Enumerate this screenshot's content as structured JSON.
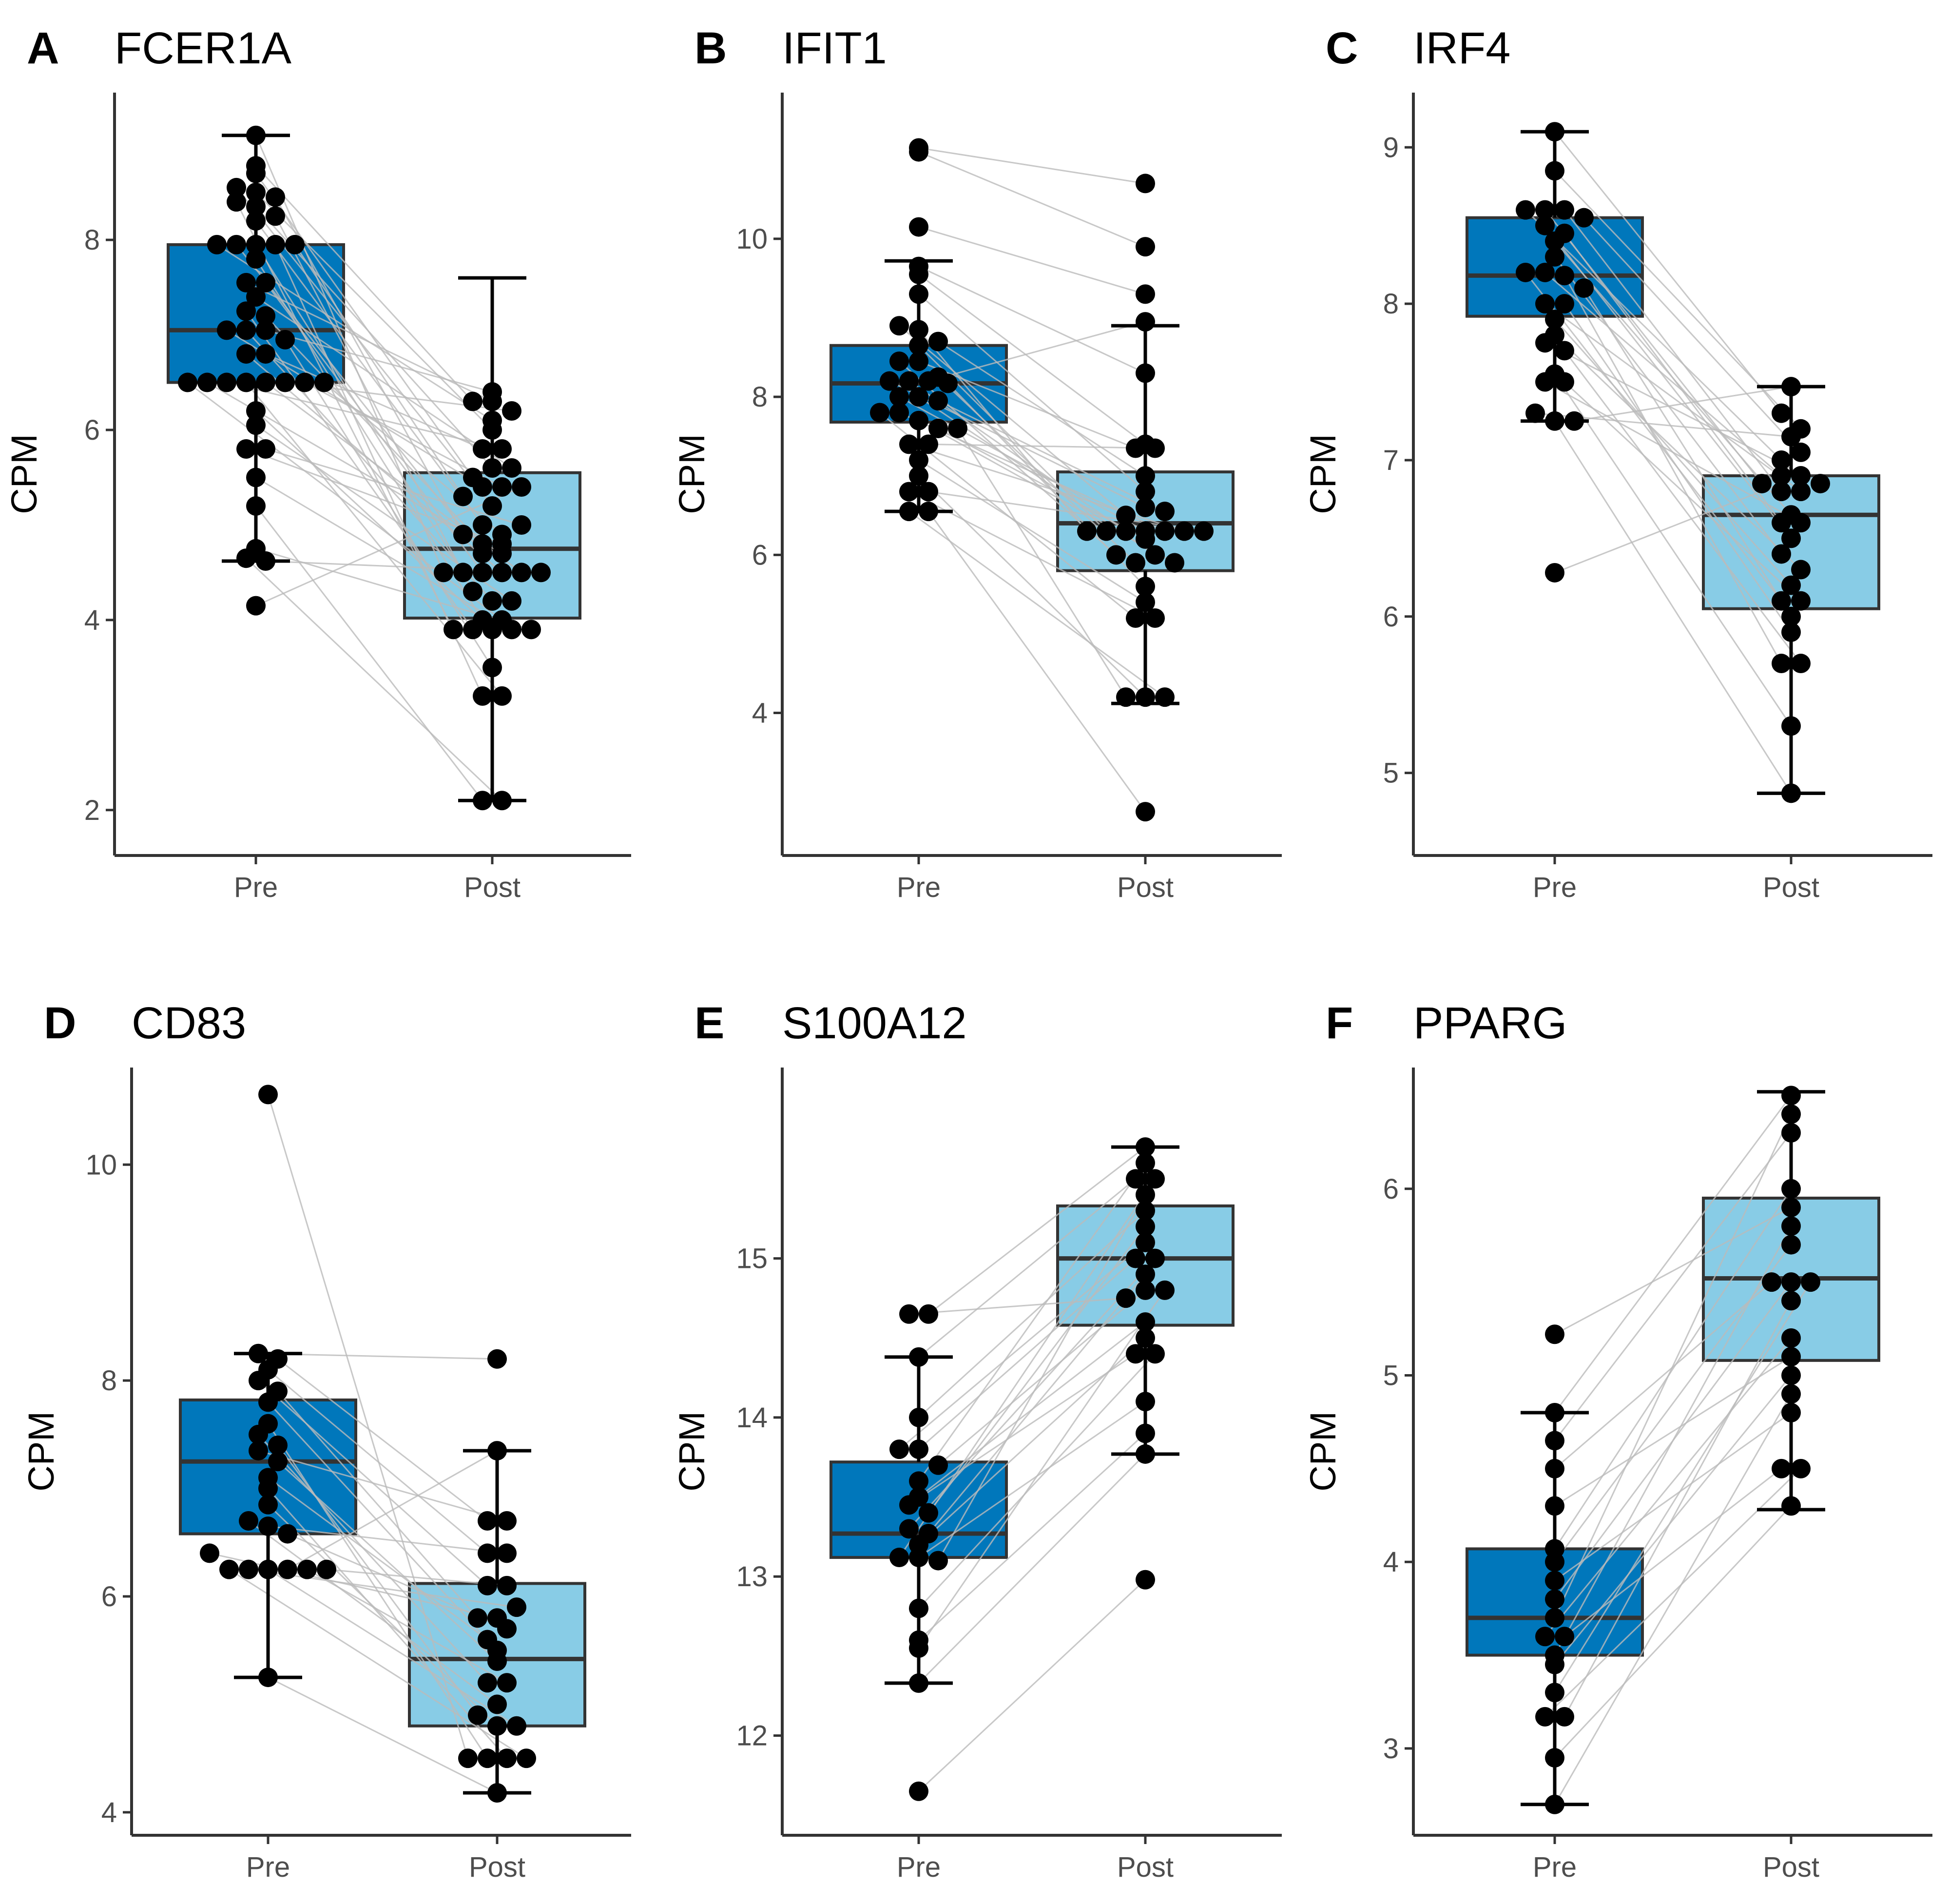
{
  "figure": {
    "colors": {
      "pre": "#0077bb",
      "post": "#88cce6",
      "points": "#000000",
      "pair_lines": "#bbbbbb",
      "box_edge": "#333333"
    }
  },
  "chart_data": [
    {
      "panel": "A",
      "title": "FCER1A",
      "type": "box_dotplot_paired",
      "xlabel": "",
      "ylabel": "CPM",
      "categories": [
        "Pre",
        "Post"
      ],
      "ylim": [
        1.65,
        9.55
      ],
      "yticks": [
        2,
        4,
        6,
        8
      ],
      "boxes": [
        {
          "group": "Pre",
          "q1": 6.5,
          "median": 7.05,
          "q3": 7.95,
          "whisker_low": 4.62,
          "whisker_high": 9.1
        },
        {
          "group": "Post",
          "q1": 4.02,
          "median": 4.75,
          "q3": 5.55,
          "whisker_low": 2.1,
          "whisker_high": 7.6
        }
      ],
      "pairs": [
        [
          9.1,
          4.5
        ],
        [
          8.78,
          6.3
        ],
        [
          8.7,
          5.5
        ],
        [
          8.55,
          5.2
        ],
        [
          8.5,
          6.0
        ],
        [
          8.45,
          4.9
        ],
        [
          8.4,
          3.9
        ],
        [
          8.35,
          5.6
        ],
        [
          8.25,
          4.3
        ],
        [
          8.2,
          5.0
        ],
        [
          7.95,
          6.1
        ],
        [
          7.95,
          4.7
        ],
        [
          7.95,
          4.5
        ],
        [
          7.95,
          3.2
        ],
        [
          7.95,
          5.3
        ],
        [
          7.8,
          4.0
        ],
        [
          7.55,
          6.3
        ],
        [
          7.55,
          4.5
        ],
        [
          7.4,
          5.6
        ],
        [
          7.25,
          3.9
        ],
        [
          7.2,
          4.8
        ],
        [
          7.05,
          5.4
        ],
        [
          7.05,
          4.2
        ],
        [
          7.05,
          6.4
        ],
        [
          6.95,
          3.5
        ],
        [
          6.8,
          4.5
        ],
        [
          6.8,
          5.8
        ],
        [
          6.5,
          4.0
        ],
        [
          6.5,
          4.7
        ],
        [
          6.5,
          5.8
        ],
        [
          6.5,
          3.2
        ],
        [
          6.5,
          4.5
        ],
        [
          6.5,
          6.2
        ],
        [
          6.5,
          5.4
        ],
        [
          6.5,
          4.9
        ],
        [
          6.2,
          3.9
        ],
        [
          6.05,
          4.2
        ],
        [
          5.8,
          4.8
        ],
        [
          5.8,
          5.0
        ],
        [
          5.5,
          3.9
        ],
        [
          5.2,
          2.1
        ],
        [
          4.75,
          3.9
        ],
        [
          4.65,
          2.1
        ],
        [
          4.62,
          4.5
        ],
        [
          4.15,
          5.4
        ]
      ]
    },
    {
      "panel": "B",
      "title": "IFIT1",
      "type": "box_dotplot_paired",
      "xlabel": "",
      "ylabel": "CPM",
      "categories": [
        "Pre",
        "Post"
      ],
      "ylim": [
        2.35,
        11.85
      ],
      "yticks": [
        4,
        6,
        8,
        10
      ],
      "boxes": [
        {
          "group": "Pre",
          "q1": 7.68,
          "median": 8.17,
          "q3": 8.65,
          "whisker_low": 6.55,
          "whisker_high": 9.72
        },
        {
          "group": "Post",
          "q1": 5.8,
          "median": 6.4,
          "q3": 7.05,
          "whisker_low": 4.12,
          "whisker_high": 8.9
        }
      ],
      "pairs": [
        [
          11.15,
          10.7
        ],
        [
          11.1,
          9.9
        ],
        [
          10.15,
          9.3
        ],
        [
          9.65,
          8.3
        ],
        [
          9.55,
          7.4
        ],
        [
          9.3,
          6.8
        ],
        [
          8.9,
          6.5
        ],
        [
          8.85,
          6.3
        ],
        [
          8.7,
          7.0
        ],
        [
          8.65,
          6.3
        ],
        [
          8.45,
          6.0
        ],
        [
          8.45,
          7.35
        ],
        [
          8.25,
          5.9
        ],
        [
          8.2,
          6.6
        ],
        [
          8.2,
          6.3
        ],
        [
          8.2,
          8.95
        ],
        [
          8.17,
          5.6
        ],
        [
          8.0,
          6.3
        ],
        [
          8.0,
          6.0
        ],
        [
          7.95,
          6.55
        ],
        [
          7.8,
          5.2
        ],
        [
          7.8,
          6.3
        ],
        [
          7.7,
          5.9
        ],
        [
          7.6,
          6.2
        ],
        [
          7.6,
          4.2
        ],
        [
          7.4,
          6.3
        ],
        [
          7.4,
          7.35
        ],
        [
          7.2,
          5.4
        ],
        [
          7.0,
          4.2
        ],
        [
          6.8,
          5.2
        ],
        [
          6.8,
          6.3
        ],
        [
          6.55,
          4.2
        ],
        [
          6.55,
          2.75
        ]
      ]
    },
    {
      "panel": "C",
      "title": "IRF4",
      "type": "box_dotplot_paired",
      "xlabel": "",
      "ylabel": "CPM",
      "categories": [
        "Pre",
        "Post"
      ],
      "ylim": [
        4.55,
        9.35
      ],
      "yticks": [
        5,
        6,
        7,
        8,
        9
      ],
      "boxes": [
        {
          "group": "Pre",
          "q1": 7.92,
          "median": 8.18,
          "q3": 8.55,
          "whisker_low": 7.25,
          "whisker_high": 9.1
        },
        {
          "group": "Post",
          "q1": 6.05,
          "median": 6.65,
          "q3": 6.9,
          "whisker_low": 4.87,
          "whisker_high": 7.47
        }
      ],
      "pairs": [
        [
          9.1,
          7.3
        ],
        [
          8.85,
          7.2
        ],
        [
          8.6,
          7.0
        ],
        [
          8.6,
          6.85
        ],
        [
          8.6,
          6.8
        ],
        [
          8.55,
          7.05
        ],
        [
          8.5,
          6.5
        ],
        [
          8.45,
          6.6
        ],
        [
          8.4,
          6.65
        ],
        [
          8.3,
          6.4
        ],
        [
          8.2,
          6.1
        ],
        [
          8.2,
          6.9
        ],
        [
          8.18,
          5.7
        ],
        [
          8.1,
          6.0
        ],
        [
          8.0,
          6.8
        ],
        [
          8.0,
          5.9
        ],
        [
          7.9,
          6.2
        ],
        [
          7.8,
          6.3
        ],
        [
          7.75,
          6.85
        ],
        [
          7.7,
          5.7
        ],
        [
          7.55,
          5.3
        ],
        [
          7.5,
          6.6
        ],
        [
          7.5,
          6.1
        ],
        [
          7.3,
          7.15
        ],
        [
          7.25,
          4.87
        ],
        [
          7.25,
          7.47
        ],
        [
          6.28,
          6.9
        ]
      ]
    },
    {
      "panel": "D",
      "title": "CD83",
      "type": "box_dotplot_paired",
      "xlabel": "",
      "ylabel": "CPM",
      "categories": [
        "Pre",
        "Post"
      ],
      "ylim": [
        3.9,
        10.9
      ],
      "yticks": [
        4,
        6,
        8,
        10
      ],
      "boxes": [
        {
          "group": "Pre",
          "q1": 6.58,
          "median": 7.25,
          "q3": 7.82,
          "whisker_low": 5.25,
          "whisker_high": 8.25
        },
        {
          "group": "Post",
          "q1": 4.8,
          "median": 5.42,
          "q3": 6.12,
          "whisker_low": 4.18,
          "whisker_high": 7.35
        }
      ],
      "pairs": [
        [
          10.65,
          4.5
        ],
        [
          8.25,
          8.2
        ],
        [
          8.2,
          6.7
        ],
        [
          8.1,
          6.4
        ],
        [
          8.0,
          6.1
        ],
        [
          7.9,
          5.8
        ],
        [
          7.8,
          5.5
        ],
        [
          7.6,
          4.5
        ],
        [
          7.5,
          5.2
        ],
        [
          7.4,
          4.9
        ],
        [
          7.35,
          6.7
        ],
        [
          7.25,
          5.4
        ],
        [
          7.1,
          5.6
        ],
        [
          7.0,
          4.5
        ],
        [
          6.85,
          4.8
        ],
        [
          6.7,
          5.0
        ],
        [
          6.65,
          6.4
        ],
        [
          6.58,
          5.7
        ],
        [
          6.4,
          5.8
        ],
        [
          6.25,
          4.5
        ],
        [
          6.25,
          5.9
        ],
        [
          6.25,
          4.8
        ],
        [
          6.25,
          7.35
        ],
        [
          6.25,
          5.2
        ],
        [
          6.25,
          6.1
        ],
        [
          5.25,
          4.18
        ]
      ]
    },
    {
      "panel": "E",
      "title": "S100A12",
      "type": "box_dotplot_paired",
      "xlabel": "",
      "ylabel": "CPM",
      "categories": [
        "Pre",
        "Post"
      ],
      "ylim": [
        11.45,
        16.2
      ],
      "yticks": [
        12,
        13,
        14,
        15
      ],
      "boxes": [
        {
          "group": "Pre",
          "q1": 13.12,
          "median": 13.27,
          "q3": 13.72,
          "whisker_low": 12.33,
          "whisker_high": 14.38
        },
        {
          "group": "Post",
          "q1": 14.58,
          "median": 15.0,
          "q3": 15.33,
          "whisker_low": 13.77,
          "whisker_high": 15.7
        }
      ],
      "pairs": [
        [
          14.65,
          14.75
        ],
        [
          14.65,
          15.7
        ],
        [
          14.38,
          15.5
        ],
        [
          14.0,
          15.3
        ],
        [
          13.8,
          15.1
        ],
        [
          13.8,
          15.0
        ],
        [
          13.7,
          14.8
        ],
        [
          13.6,
          15.6
        ],
        [
          13.5,
          14.6
        ],
        [
          13.45,
          14.4
        ],
        [
          13.4,
          15.2
        ],
        [
          13.3,
          15.0
        ],
        [
          13.27,
          14.9
        ],
        [
          13.2,
          14.5
        ],
        [
          13.12,
          15.5
        ],
        [
          13.12,
          14.1
        ],
        [
          13.1,
          15.4
        ],
        [
          12.8,
          14.4
        ],
        [
          12.6,
          13.9
        ],
        [
          12.55,
          14.8
        ],
        [
          12.33,
          13.77
        ],
        [
          11.65,
          12.98
        ]
      ]
    },
    {
      "panel": "F",
      "title": "PPARG",
      "type": "box_dotplot_paired",
      "xlabel": "",
      "ylabel": "CPM",
      "categories": [
        "Pre",
        "Post"
      ],
      "ylim": [
        2.6,
        6.65
      ],
      "yticks": [
        3,
        4,
        5,
        6
      ],
      "boxes": [
        {
          "group": "Pre",
          "q1": 3.5,
          "median": 3.7,
          "q3": 4.07,
          "whisker_low": 2.7,
          "whisker_high": 4.8
        },
        {
          "group": "Post",
          "q1": 5.08,
          "median": 5.52,
          "q3": 5.95,
          "whisker_low": 4.28,
          "whisker_high": 6.52
        }
      ],
      "pairs": [
        [
          5.22,
          5.9
        ],
        [
          4.8,
          6.5
        ],
        [
          4.65,
          6.3
        ],
        [
          4.5,
          5.5
        ],
        [
          4.3,
          5.1
        ],
        [
          4.07,
          6.0
        ],
        [
          4.0,
          5.7
        ],
        [
          3.9,
          4.8
        ],
        [
          3.8,
          5.5
        ],
        [
          3.7,
          6.4
        ],
        [
          3.6,
          5.2
        ],
        [
          3.6,
          4.5
        ],
        [
          3.5,
          5.8
        ],
        [
          3.45,
          5.0
        ],
        [
          3.3,
          5.5
        ],
        [
          3.17,
          4.5
        ],
        [
          3.17,
          5.4
        ],
        [
          2.95,
          4.3
        ],
        [
          2.7,
          4.9
        ]
      ]
    }
  ]
}
